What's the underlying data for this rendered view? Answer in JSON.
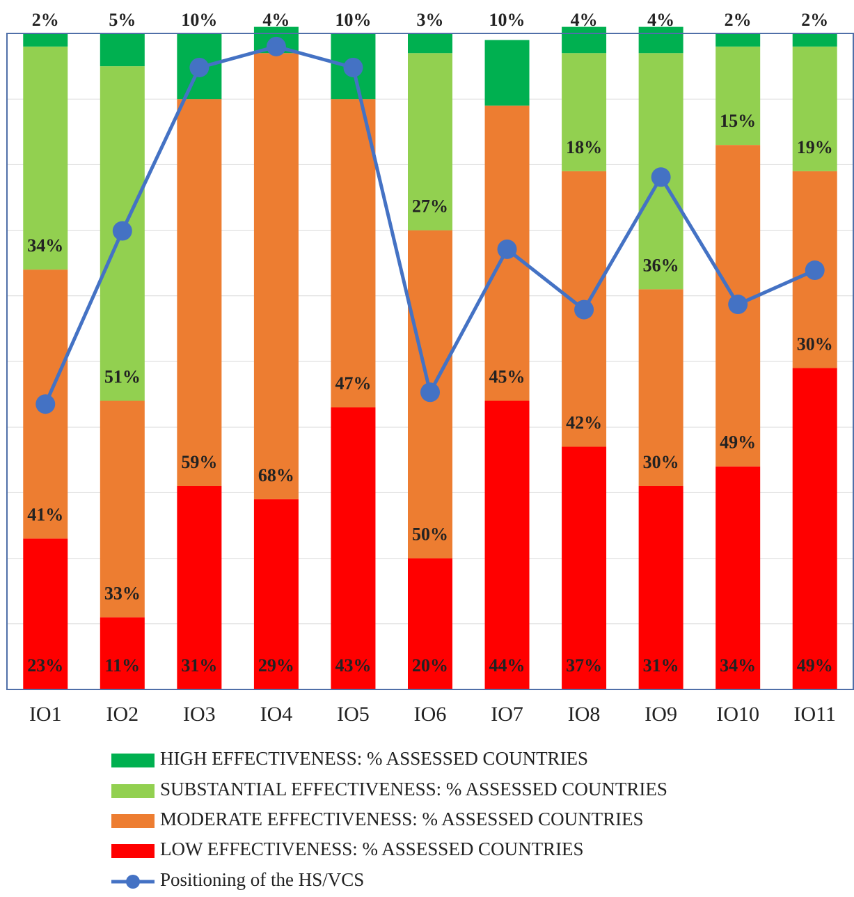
{
  "chart_data": {
    "type": "bar",
    "stacked": true,
    "categories": [
      "IO1",
      "IO2",
      "IO3",
      "IO4",
      "IO5",
      "IO6",
      "IO7",
      "IO8",
      "IO9",
      "IO10",
      "IO11"
    ],
    "ylim": [
      0,
      100
    ],
    "yticks": [
      0,
      10,
      20,
      30,
      40,
      50,
      60,
      70,
      80,
      90,
      100
    ],
    "grid": true,
    "series": [
      {
        "name": "HIGH EFFECTIVENESS: % ASSESSED COUNTRIES",
        "color": "#00b050",
        "values": [
          2,
          5,
          10,
          4,
          10,
          3,
          10,
          4,
          4,
          2,
          2
        ],
        "value_labels": [
          "2%",
          "5%",
          "10%",
          "4%",
          "10%",
          "3%",
          "10%",
          "4%",
          "4%",
          "2%",
          "2%"
        ]
      },
      {
        "name": "SUBSTANTIAL EFFECTIVENESS: % ASSESSED COUNTRIES",
        "color": "#92d050",
        "values": [
          34,
          51,
          null,
          null,
          null,
          27,
          null,
          18,
          36,
          15,
          19
        ],
        "value_labels": [
          "34%",
          "51%",
          null,
          null,
          null,
          "27%",
          null,
          "18%",
          "36%",
          "15%",
          "19%"
        ]
      },
      {
        "name": "MODERATE EFFECTIVENESS: % ASSESSED COUNTRIES",
        "color": "#ed7d31",
        "values": [
          41,
          33,
          59,
          68,
          47,
          50,
          45,
          42,
          30,
          49,
          30
        ],
        "value_labels": [
          "41%",
          "33%",
          "59%",
          "68%",
          "47%",
          "50%",
          "45%",
          "42%",
          "30%",
          "49%",
          "30%"
        ]
      },
      {
        "name": "LOW EFFECTIVENESS: % ASSESSED COUNTRIES",
        "color": "#ff0000",
        "values": [
          23,
          11,
          31,
          29,
          43,
          20,
          44,
          37,
          31,
          34,
          49
        ],
        "value_labels": [
          "23%",
          "11%",
          "31%",
          "29%",
          "43%",
          "20%",
          "44%",
          "37%",
          "31%",
          "34%",
          "49%"
        ]
      },
      {
        "name": "Positioning of the HS/VCS",
        "color": "#4472c4",
        "type": "line",
        "values": [
          43.5,
          69.9,
          94.8,
          98,
          94.8,
          45.3,
          67.1,
          57.9,
          78.1,
          58.7,
          63.9
        ]
      }
    ]
  }
}
